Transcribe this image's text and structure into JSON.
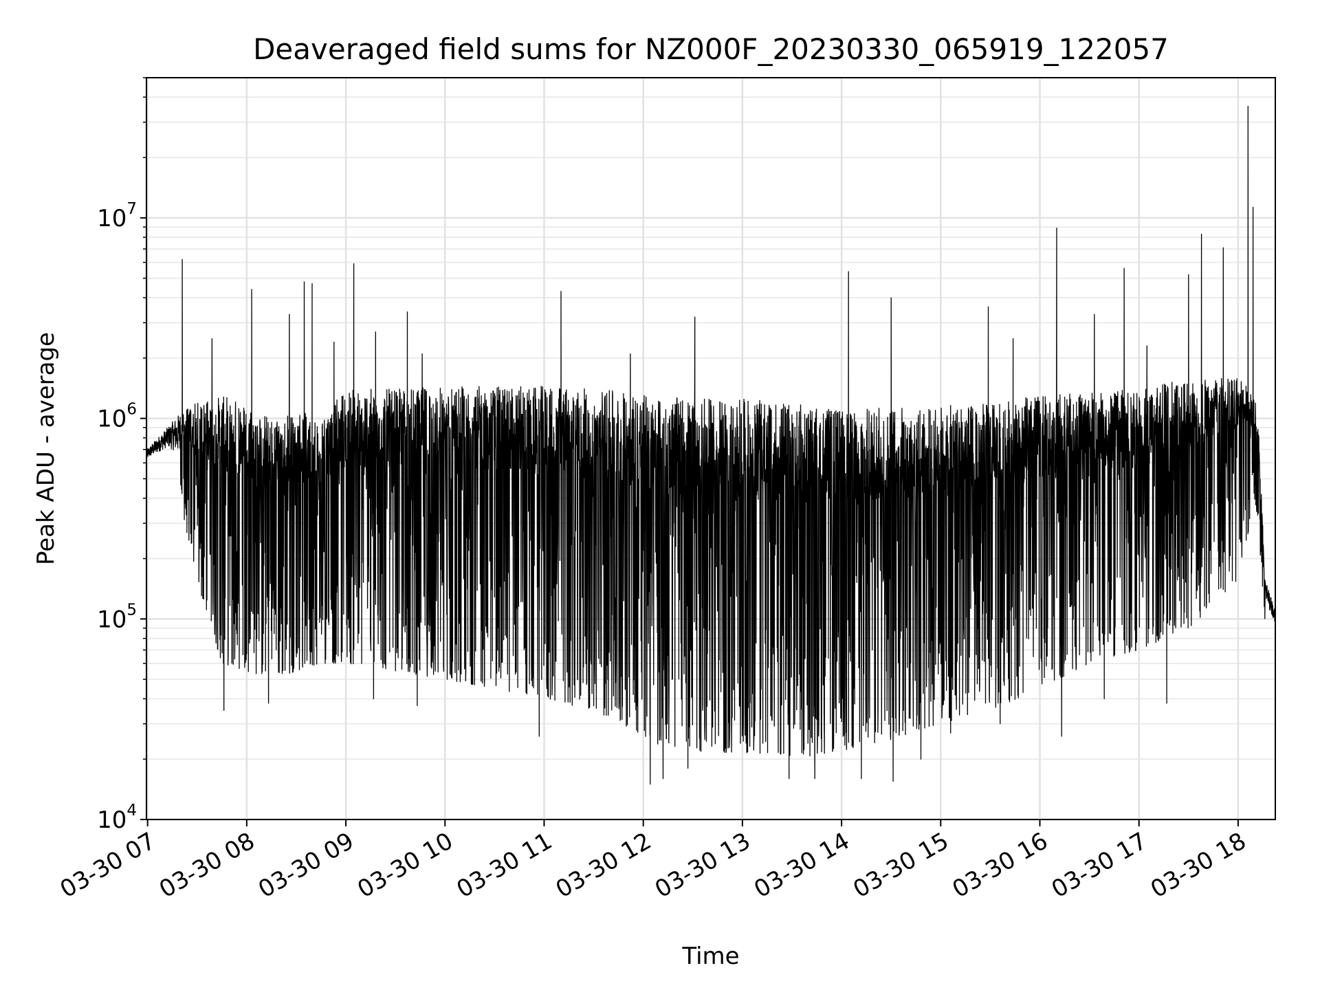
{
  "chart_data": {
    "type": "line",
    "title": "Deaveraged field sums for NZ000F_20230330_065919_122057",
    "xlabel": "Time",
    "ylabel": "Peak ADU - average",
    "yscale": "log",
    "xlim": [
      "2023-03-30 06:59:19",
      "2023-03-30 18:22:30"
    ],
    "ylim": [
      10000,
      50000000
    ],
    "grid": true,
    "legend": "none",
    "line_color": "#000000",
    "x_ticks": [
      "03-30 07",
      "03-30 08",
      "03-30 09",
      "03-30 10",
      "03-30 11",
      "03-30 12",
      "03-30 13",
      "03-30 14",
      "03-30 15",
      "03-30 16",
      "03-30 17",
      "03-30 18"
    ],
    "x_tick_hours": [
      7,
      8,
      9,
      10,
      11,
      12,
      13,
      14,
      15,
      16,
      17,
      18
    ],
    "y_ticks": [
      {
        "base": "10",
        "exp": "4",
        "value": 10000
      },
      {
        "base": "10",
        "exp": "5",
        "value": 100000
      },
      {
        "base": "10",
        "exp": "6",
        "value": 1000000
      },
      {
        "base": "10",
        "exp": "7",
        "value": 10000000
      }
    ],
    "series": [
      {
        "envelope_hours": [
          6.99,
          7.2,
          7.35,
          7.5,
          7.75,
          8.0,
          8.25,
          8.5,
          8.75,
          9.0,
          9.5,
          10.0,
          10.5,
          11.0,
          11.5,
          11.9,
          12.1,
          12.5,
          13.0,
          13.5,
          14.0,
          14.5,
          15.0,
          15.5,
          16.0,
          16.5,
          17.0,
          17.5,
          18.0,
          18.17,
          18.2,
          18.27,
          18.375
        ],
        "envelope_high": [
          700000,
          900000,
          1100000,
          1200000,
          1300000,
          1200000,
          1000000,
          1100000,
          1000000,
          1400000,
          1400000,
          1450000,
          1450000,
          1450000,
          1400000,
          1350000,
          1300000,
          1250000,
          1250000,
          1200000,
          1100000,
          1150000,
          1150000,
          1200000,
          1300000,
          1350000,
          1400000,
          1600000,
          1600000,
          1300000,
          1100000,
          160000,
          110000
        ],
        "envelope_low": [
          550000,
          550000,
          350000,
          150000,
          60000,
          55000,
          50000,
          55000,
          60000,
          60000,
          55000,
          50000,
          45000,
          40000,
          35000,
          28000,
          24000,
          22000,
          21000,
          20000,
          22000,
          25000,
          30000,
          35000,
          45000,
          60000,
          70000,
          90000,
          150000,
          400000,
          300000,
          95000,
          80000
        ],
        "spikes": [
          [
            7.35,
            6200000
          ],
          [
            7.65,
            2500000
          ],
          [
            8.05,
            4400000
          ],
          [
            8.43,
            3300000
          ],
          [
            8.58,
            4800000
          ],
          [
            8.66,
            4700000
          ],
          [
            8.88,
            2400000
          ],
          [
            9.08,
            5900000
          ],
          [
            9.3,
            2700000
          ],
          [
            9.62,
            3400000
          ],
          [
            9.77,
            2100000
          ],
          [
            11.17,
            4300000
          ],
          [
            11.87,
            2100000
          ],
          [
            12.52,
            3200000
          ],
          [
            14.07,
            5400000
          ],
          [
            14.5,
            4000000
          ],
          [
            15.48,
            3600000
          ],
          [
            15.73,
            2500000
          ],
          [
            16.17,
            8900000
          ],
          [
            16.55,
            3300000
          ],
          [
            16.85,
            5600000
          ],
          [
            17.08,
            2300000
          ],
          [
            17.5,
            5200000
          ],
          [
            17.63,
            8300000
          ],
          [
            17.85,
            7100000
          ],
          [
            18.1,
            36000000
          ],
          [
            18.15,
            11300000
          ]
        ],
        "dips": [
          [
            7.77,
            35000
          ],
          [
            8.22,
            38000
          ],
          [
            9.28,
            40000
          ],
          [
            9.72,
            37000
          ],
          [
            10.95,
            26000
          ],
          [
            12.07,
            15000
          ],
          [
            12.2,
            16000
          ],
          [
            12.45,
            18000
          ],
          [
            13.47,
            16000
          ],
          [
            13.73,
            16000
          ],
          [
            14.2,
            16000
          ],
          [
            14.52,
            15500
          ],
          [
            14.8,
            20000
          ],
          [
            15.1,
            27000
          ],
          [
            15.6,
            30000
          ],
          [
            16.22,
            26000
          ],
          [
            16.65,
            40000
          ],
          [
            17.28,
            38000
          ]
        ]
      }
    ]
  }
}
